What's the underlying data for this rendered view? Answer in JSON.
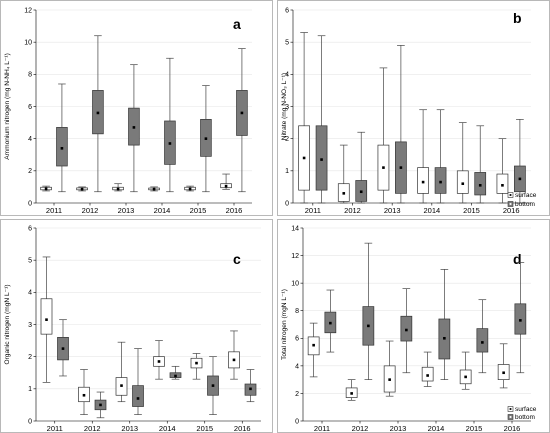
{
  "figure": {
    "legend": {
      "surface": "surface",
      "bottom": "bottom"
    }
  },
  "colors": {
    "surface": "#ffffff",
    "bottom": "#7a7a7a",
    "outline": "#333333",
    "whisker": "#444444"
  },
  "chart_data": [
    {
      "id": "a",
      "type": "box",
      "panel_letter": "a",
      "ylabel": "Ammonium nitrogen (mg N-NH₄ L⁻¹)",
      "ylim": [
        0,
        12
      ],
      "yticks": [
        0,
        2,
        4,
        6,
        8,
        10,
        12
      ],
      "categories": [
        "2011",
        "2012",
        "2013",
        "2014",
        "2015",
        "2016"
      ],
      "legend_in_panel": false,
      "series": [
        {
          "name": "surface",
          "boxes": [
            {
              "min": 0.75,
              "q1": 0.82,
              "median": 0.88,
              "q3": 0.98,
              "max": 1.05
            },
            {
              "min": 0.75,
              "q1": 0.82,
              "median": 0.86,
              "q3": 0.94,
              "max": 1.0
            },
            {
              "min": 0.75,
              "q1": 0.82,
              "median": 0.87,
              "q3": 0.98,
              "max": 1.2
            },
            {
              "min": 0.75,
              "q1": 0.82,
              "median": 0.86,
              "q3": 0.93,
              "max": 1.0
            },
            {
              "min": 0.75,
              "q1": 0.82,
              "median": 0.87,
              "q3": 0.98,
              "max": 1.05
            },
            {
              "min": 0.85,
              "q1": 0.95,
              "median": 1.05,
              "q3": 1.2,
              "max": 1.8
            }
          ]
        },
        {
          "name": "bottom",
          "boxes": [
            {
              "min": 0.7,
              "q1": 2.3,
              "median": 3.4,
              "q3": 4.7,
              "max": 7.4
            },
            {
              "min": 0.7,
              "q1": 4.3,
              "median": 5.6,
              "q3": 7.0,
              "max": 10.4
            },
            {
              "min": 0.7,
              "q1": 3.6,
              "median": 4.7,
              "q3": 5.9,
              "max": 8.6
            },
            {
              "min": 0.7,
              "q1": 2.4,
              "median": 3.7,
              "q3": 5.1,
              "max": 9.0
            },
            {
              "min": 0.7,
              "q1": 2.9,
              "median": 4.0,
              "q3": 5.2,
              "max": 7.3
            },
            {
              "min": 0.7,
              "q1": 4.2,
              "median": 5.6,
              "q3": 7.0,
              "max": 9.6
            }
          ]
        }
      ]
    },
    {
      "id": "b",
      "type": "box",
      "panel_letter": "b",
      "ylabel": "Nitrate (mg N-NO₃ L⁻¹)",
      "ylim": [
        0,
        6
      ],
      "yticks": [
        0,
        1,
        2,
        3,
        4,
        5,
        6
      ],
      "categories": [
        "2011",
        "2012",
        "2013",
        "2014",
        "2015",
        "2016"
      ],
      "legend_in_panel": true,
      "series": [
        {
          "name": "surface",
          "boxes": [
            {
              "min": 0.0,
              "q1": 0.4,
              "median": 1.4,
              "q3": 2.4,
              "max": 5.3
            },
            {
              "min": 0.0,
              "q1": 0.05,
              "median": 0.3,
              "q3": 0.6,
              "max": 1.8
            },
            {
              "min": 0.0,
              "q1": 0.4,
              "median": 1.1,
              "q3": 1.8,
              "max": 4.2
            },
            {
              "min": 0.0,
              "q1": 0.3,
              "median": 0.65,
              "q3": 1.1,
              "max": 2.9
            },
            {
              "min": 0.0,
              "q1": 0.3,
              "median": 0.6,
              "q3": 1.0,
              "max": 2.5
            },
            {
              "min": 0.0,
              "q1": 0.3,
              "median": 0.55,
              "q3": 0.9,
              "max": 2.0
            }
          ]
        },
        {
          "name": "bottom",
          "boxes": [
            {
              "min": 0.0,
              "q1": 0.4,
              "median": 1.35,
              "q3": 2.4,
              "max": 5.2
            },
            {
              "min": 0.0,
              "q1": 0.05,
              "median": 0.35,
              "q3": 0.7,
              "max": 2.2
            },
            {
              "min": 0.0,
              "q1": 0.3,
              "median": 1.1,
              "q3": 1.9,
              "max": 4.9
            },
            {
              "min": 0.0,
              "q1": 0.3,
              "median": 0.65,
              "q3": 1.1,
              "max": 2.9
            },
            {
              "min": 0.0,
              "q1": 0.25,
              "median": 0.55,
              "q3": 0.95,
              "max": 2.4
            },
            {
              "min": 0.0,
              "q1": 0.35,
              "median": 0.75,
              "q3": 1.15,
              "max": 2.6
            }
          ]
        }
      ]
    },
    {
      "id": "c",
      "type": "box",
      "panel_letter": "c",
      "ylabel": "Organic nitrogen (mgN L⁻¹)",
      "ylim": [
        0,
        6
      ],
      "yticks": [
        0,
        1,
        2,
        3,
        4,
        5,
        6
      ],
      "categories": [
        "2011",
        "2012",
        "2013",
        "2014",
        "2015",
        "2016"
      ],
      "legend_in_panel": false,
      "series": [
        {
          "name": "surface",
          "boxes": [
            {
              "min": 1.2,
              "q1": 2.7,
              "median": 3.15,
              "q3": 3.8,
              "max": 5.1
            },
            {
              "min": 0.2,
              "q1": 0.6,
              "median": 0.8,
              "q3": 1.05,
              "max": 1.6
            },
            {
              "min": 0.6,
              "q1": 0.8,
              "median": 1.1,
              "q3": 1.35,
              "max": 2.45
            },
            {
              "min": 1.3,
              "q1": 1.7,
              "median": 1.85,
              "q3": 2.0,
              "max": 2.5
            },
            {
              "min": 1.3,
              "q1": 1.65,
              "median": 1.8,
              "q3": 1.95,
              "max": 2.1
            },
            {
              "min": 1.3,
              "q1": 1.65,
              "median": 1.9,
              "q3": 2.15,
              "max": 2.8
            }
          ]
        },
        {
          "name": "bottom",
          "boxes": [
            {
              "min": 1.4,
              "q1": 1.9,
              "median": 2.25,
              "q3": 2.6,
              "max": 3.15
            },
            {
              "min": 0.1,
              "q1": 0.35,
              "median": 0.5,
              "q3": 0.65,
              "max": 0.9
            },
            {
              "min": 0.2,
              "q1": 0.45,
              "median": 0.7,
              "q3": 1.1,
              "max": 2.25
            },
            {
              "min": 1.3,
              "q1": 1.35,
              "median": 1.4,
              "q3": 1.5,
              "max": 1.7
            },
            {
              "min": 0.2,
              "q1": 0.8,
              "median": 1.1,
              "q3": 1.4,
              "max": 2.0
            },
            {
              "min": 0.6,
              "q1": 0.8,
              "median": 1.0,
              "q3": 1.15,
              "max": 1.6
            }
          ]
        }
      ]
    },
    {
      "id": "d",
      "type": "box",
      "panel_letter": "d",
      "ylabel": "Total nitrogen (mgN L⁻¹)",
      "ylim": [
        0,
        14
      ],
      "yticks": [
        0,
        2,
        4,
        6,
        8,
        10,
        12,
        14
      ],
      "categories": [
        "2011",
        "2012",
        "2013",
        "2014",
        "2015",
        "2016"
      ],
      "legend_in_panel": true,
      "series": [
        {
          "name": "surface",
          "boxes": [
            {
              "min": 3.2,
              "q1": 4.8,
              "median": 5.5,
              "q3": 6.1,
              "max": 7.1
            },
            {
              "min": 1.5,
              "q1": 1.7,
              "median": 2.0,
              "q3": 2.4,
              "max": 3.0
            },
            {
              "min": 1.8,
              "q1": 2.1,
              "median": 3.0,
              "q3": 4.0,
              "max": 5.8
            },
            {
              "min": 2.5,
              "q1": 2.9,
              "median": 3.3,
              "q3": 3.9,
              "max": 5.0
            },
            {
              "min": 2.3,
              "q1": 2.7,
              "median": 3.2,
              "q3": 3.7,
              "max": 5.0
            },
            {
              "min": 2.4,
              "q1": 3.0,
              "median": 3.5,
              "q3": 4.1,
              "max": 5.6
            }
          ]
        },
        {
          "name": "bottom",
          "boxes": [
            {
              "min": 5.0,
              "q1": 6.4,
              "median": 7.1,
              "q3": 7.9,
              "max": 9.5
            },
            {
              "min": 3.0,
              "q1": 5.5,
              "median": 6.9,
              "q3": 8.3,
              "max": 12.9
            },
            {
              "min": 3.5,
              "q1": 5.8,
              "median": 6.6,
              "q3": 7.6,
              "max": 9.6
            },
            {
              "min": 3.0,
              "q1": 4.5,
              "median": 6.0,
              "q3": 7.4,
              "max": 11.0
            },
            {
              "min": 3.5,
              "q1": 5.0,
              "median": 5.7,
              "q3": 6.7,
              "max": 8.8
            },
            {
              "min": 3.5,
              "q1": 6.3,
              "median": 7.3,
              "q3": 8.5,
              "max": 11.5
            }
          ]
        }
      ]
    }
  ]
}
